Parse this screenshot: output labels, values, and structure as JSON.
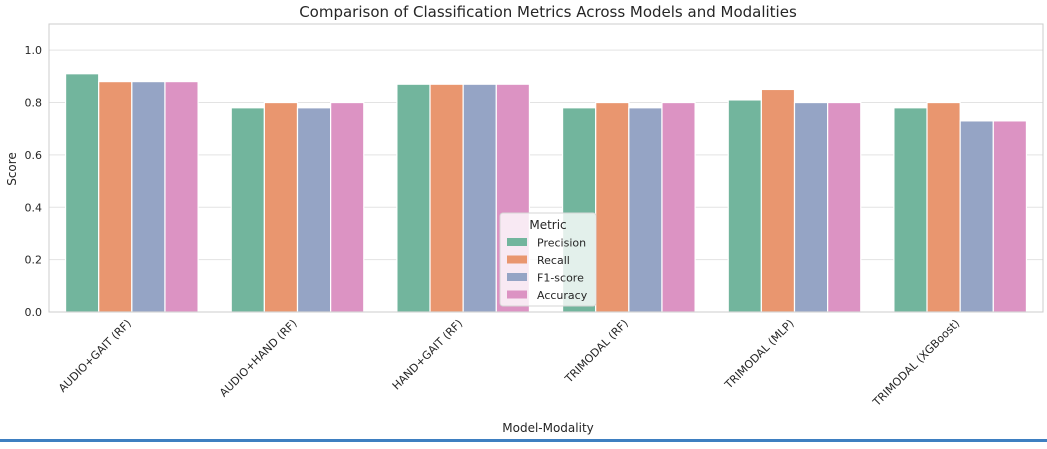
{
  "chart_data": {
    "type": "bar",
    "title": "Comparison of Classification Metrics Across Models and Modalities",
    "xlabel": "Model-Modality",
    "ylabel": "Score",
    "ylim": [
      0,
      1.1
    ],
    "yticks": [
      "0.0",
      "0.2",
      "0.4",
      "0.6",
      "0.8",
      "1.0"
    ],
    "grid": true,
    "categories": [
      "AUDIO+GAIT (RF)",
      "AUDIO+HAND (RF)",
      "HAND+GAIT (RF)",
      "TRIMODAL (RF)",
      "TRIMODAL (MLP)",
      "TRIMODAL (XGBoost)"
    ],
    "series": [
      {
        "name": "Precision",
        "color": "#72b59d",
        "values": [
          0.91,
          0.78,
          0.87,
          0.78,
          0.81,
          0.78
        ]
      },
      {
        "name": "Recall",
        "color": "#e9966f",
        "values": [
          0.88,
          0.8,
          0.87,
          0.8,
          0.85,
          0.8
        ]
      },
      {
        "name": "F1-score",
        "color": "#95a4c5",
        "values": [
          0.88,
          0.78,
          0.87,
          0.78,
          0.8,
          0.73
        ]
      },
      {
        "name": "Accuracy",
        "color": "#dc93c3",
        "values": [
          0.88,
          0.8,
          0.87,
          0.8,
          0.8,
          0.73
        ]
      }
    ],
    "legend": {
      "title": "Metric",
      "placement": "lower-center"
    }
  }
}
